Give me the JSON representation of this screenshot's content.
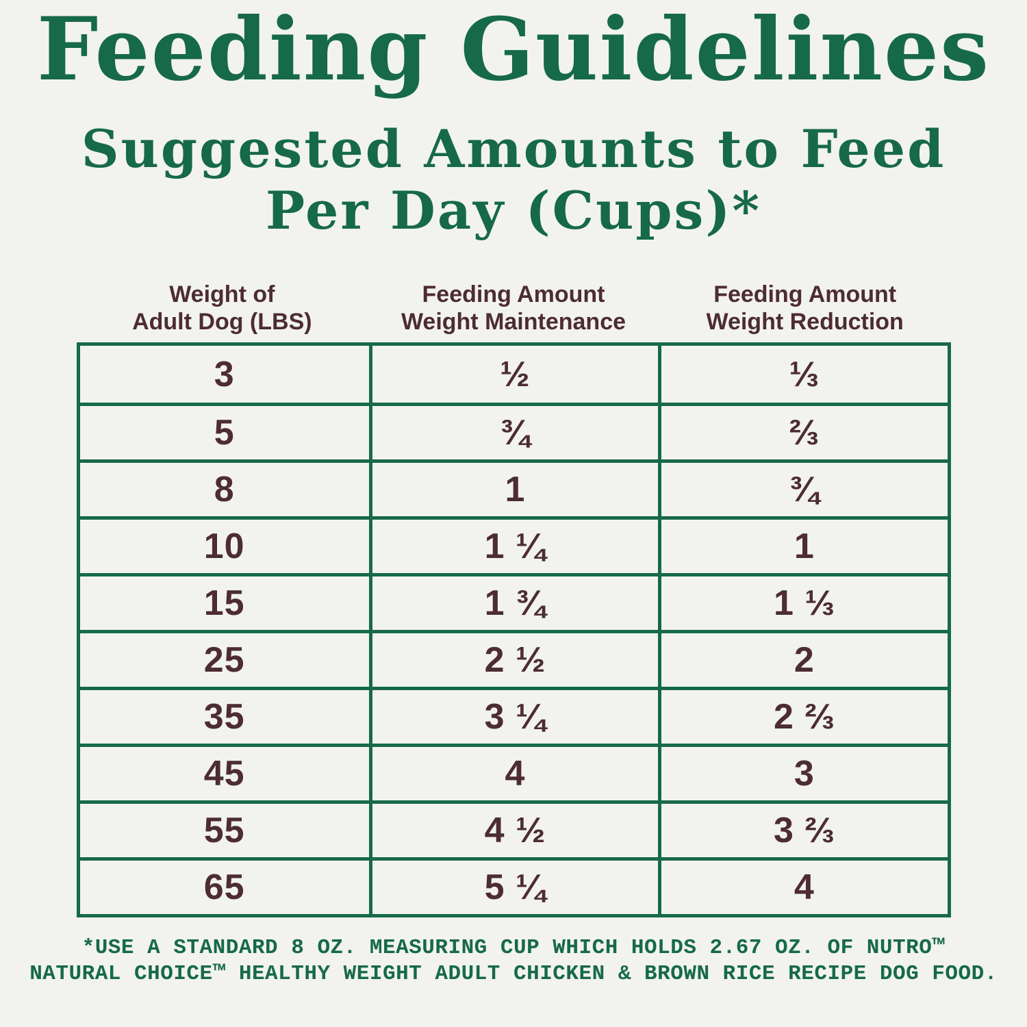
{
  "title": "Feeding Guidelines",
  "subtitle": {
    "line1": "Suggested Amounts to Feed",
    "line2": "Per Day (Cups)*"
  },
  "table": {
    "columns": [
      {
        "line1": "Weight of",
        "line2": "Adult Dog (LBS)"
      },
      {
        "line1": "Feeding Amount",
        "line2": "Weight Maintenance"
      },
      {
        "line1": "Feeding Amount",
        "line2": "Weight Reduction"
      }
    ],
    "rows": [
      {
        "weight": "3",
        "maintenance": "½",
        "reduction": "⅓"
      },
      {
        "weight": "5",
        "maintenance": "¾",
        "reduction": "⅔"
      },
      {
        "weight": "8",
        "maintenance": "1",
        "reduction": "¾"
      },
      {
        "weight": "10",
        "maintenance": "1 ¼",
        "reduction": "1"
      },
      {
        "weight": "15",
        "maintenance": "1 ¾",
        "reduction": "1 ⅓"
      },
      {
        "weight": "25",
        "maintenance": "2 ½",
        "reduction": "2"
      },
      {
        "weight": "35",
        "maintenance": "3 ¼",
        "reduction": "2 ⅔"
      },
      {
        "weight": "45",
        "maintenance": "4",
        "reduction": "3"
      },
      {
        "weight": "55",
        "maintenance": "4 ½",
        "reduction": "3 ⅔"
      },
      {
        "weight": "65",
        "maintenance": "5 ¼",
        "reduction": "4"
      }
    ]
  },
  "footnote": {
    "line1": "*USE A STANDARD 8 OZ. MEASURING CUP WHICH HOLDS 2.67 OZ. OF NUTRO™",
    "line2": "NATURAL CHOICE™ HEALTHY WEIGHT ADULT CHICKEN & BROWN RICE RECIPE DOG FOOD."
  },
  "colors": {
    "accent_green": "#16694A",
    "table_border_green": "#17694B",
    "text_maroon": "#4D2C34",
    "background": "#F2F3EE"
  },
  "chart_data": {
    "type": "table",
    "title": "Feeding Guidelines",
    "subtitle": "Suggested Amounts to Feed Per Day (Cups)*",
    "columns": [
      "Weight of Adult Dog (LBS)",
      "Feeding Amount Weight Maintenance",
      "Feeding Amount Weight Reduction"
    ],
    "rows": [
      [
        "3",
        "½",
        "⅓"
      ],
      [
        "5",
        "¾",
        "⅔"
      ],
      [
        "8",
        "1",
        "¾"
      ],
      [
        "10",
        "1 ¼",
        "1"
      ],
      [
        "15",
        "1 ¾",
        "1 ⅓"
      ],
      [
        "25",
        "2 ½",
        "2"
      ],
      [
        "35",
        "3 ¼",
        "2 ⅔"
      ],
      [
        "45",
        "4",
        "3"
      ],
      [
        "55",
        "4 ½",
        "3 ⅔"
      ],
      [
        "65",
        "5 ¼",
        "4"
      ]
    ],
    "footnote": "*USE A STANDARD 8 OZ. MEASURING CUP WHICH HOLDS 2.67 OZ. OF NUTRO™ NATURAL CHOICE™ HEALTHY WEIGHT ADULT CHICKEN & BROWN RICE RECIPE DOG FOOD.",
    "grid": true,
    "header_position": "above-table"
  }
}
